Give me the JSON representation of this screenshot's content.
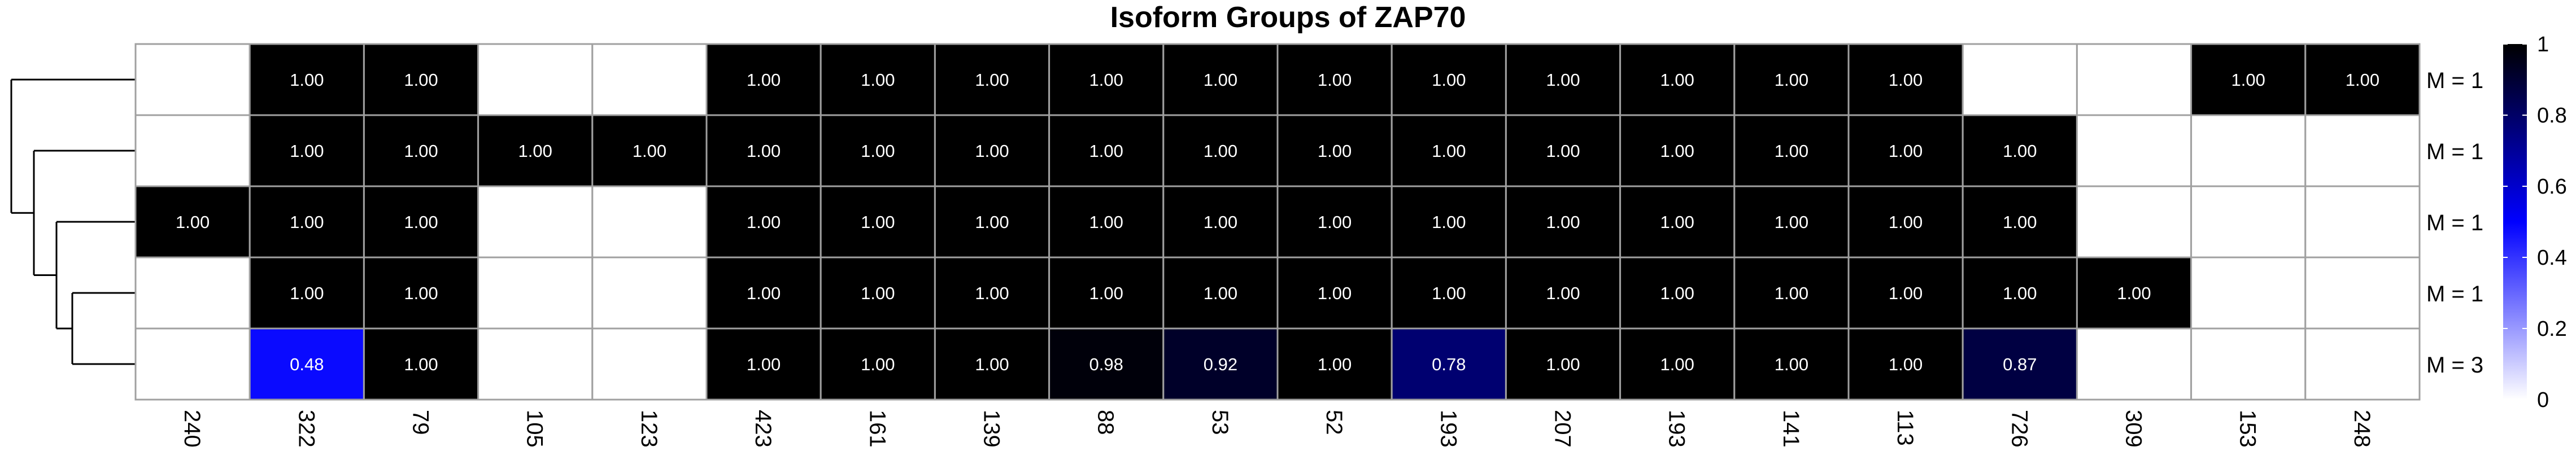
{
  "chart_data": {
    "type": "heatmap",
    "title": "Isoform Groups of ZAP70",
    "columns": [
      "240",
      "322",
      "79",
      "105",
      "123",
      "423",
      "161",
      "139",
      "88",
      "53",
      "52",
      "193",
      "207",
      "193",
      "141",
      "113",
      "726",
      "309",
      "153",
      "248"
    ],
    "rows": [
      "M = 1",
      "M = 1",
      "M = 1",
      "M = 1",
      "M = 3"
    ],
    "values": [
      [
        null,
        1.0,
        1.0,
        null,
        null,
        1.0,
        1.0,
        1.0,
        1.0,
        1.0,
        1.0,
        1.0,
        1.0,
        1.0,
        1.0,
        1.0,
        null,
        null,
        1.0,
        1.0
      ],
      [
        null,
        1.0,
        1.0,
        1.0,
        1.0,
        1.0,
        1.0,
        1.0,
        1.0,
        1.0,
        1.0,
        1.0,
        1.0,
        1.0,
        1.0,
        1.0,
        1.0,
        null,
        null,
        null
      ],
      [
        1.0,
        1.0,
        1.0,
        null,
        null,
        1.0,
        1.0,
        1.0,
        1.0,
        1.0,
        1.0,
        1.0,
        1.0,
        1.0,
        1.0,
        1.0,
        1.0,
        null,
        null,
        null
      ],
      [
        null,
        1.0,
        1.0,
        null,
        null,
        1.0,
        1.0,
        1.0,
        1.0,
        1.0,
        1.0,
        1.0,
        1.0,
        1.0,
        1.0,
        1.0,
        1.0,
        1.0,
        null,
        null
      ],
      [
        null,
        0.48,
        1.0,
        null,
        null,
        1.0,
        1.0,
        1.0,
        0.98,
        0.92,
        1.0,
        0.78,
        1.0,
        1.0,
        1.0,
        1.0,
        0.87,
        null,
        null,
        null
      ]
    ],
    "value_labels": [
      [
        "",
        "1.00",
        "1.00",
        "",
        "",
        "1.00",
        "1.00",
        "1.00",
        "1.00",
        "1.00",
        "1.00",
        "1.00",
        "1.00",
        "1.00",
        "1.00",
        "1.00",
        "",
        "",
        "1.00",
        "1.00"
      ],
      [
        "",
        "1.00",
        "1.00",
        "1.00",
        "1.00",
        "1.00",
        "1.00",
        "1.00",
        "1.00",
        "1.00",
        "1.00",
        "1.00",
        "1.00",
        "1.00",
        "1.00",
        "1.00",
        "1.00",
        "",
        "",
        ""
      ],
      [
        "1.00",
        "1.00",
        "1.00",
        "",
        "",
        "1.00",
        "1.00",
        "1.00",
        "1.00",
        "1.00",
        "1.00",
        "1.00",
        "1.00",
        "1.00",
        "1.00",
        "1.00",
        "1.00",
        "",
        "",
        ""
      ],
      [
        "",
        "1.00",
        "1.00",
        "",
        "",
        "1.00",
        "1.00",
        "1.00",
        "1.00",
        "1.00",
        "1.00",
        "1.00",
        "1.00",
        "1.00",
        "1.00",
        "1.00",
        "1.00",
        "1.00",
        "",
        ""
      ],
      [
        "",
        "0.48",
        "1.00",
        "",
        "",
        "1.00",
        "1.00",
        "1.00",
        "0.98",
        "0.92",
        "1.00",
        "0.78",
        "1.00",
        "1.00",
        "1.00",
        "1.00",
        "0.87",
        "",
        "",
        ""
      ]
    ],
    "color_scale": {
      "min": 0,
      "max": 1,
      "colors": [
        "#ffffff",
        "#0000ff",
        "#000000"
      ],
      "ticks": [
        "0",
        "0.2",
        "0.4",
        "0.6",
        "0.8",
        "1"
      ]
    },
    "dendrogram": "row clustering tree on left",
    "grid_color": "#a0a0a0",
    "empty_color": "#ffffff"
  }
}
